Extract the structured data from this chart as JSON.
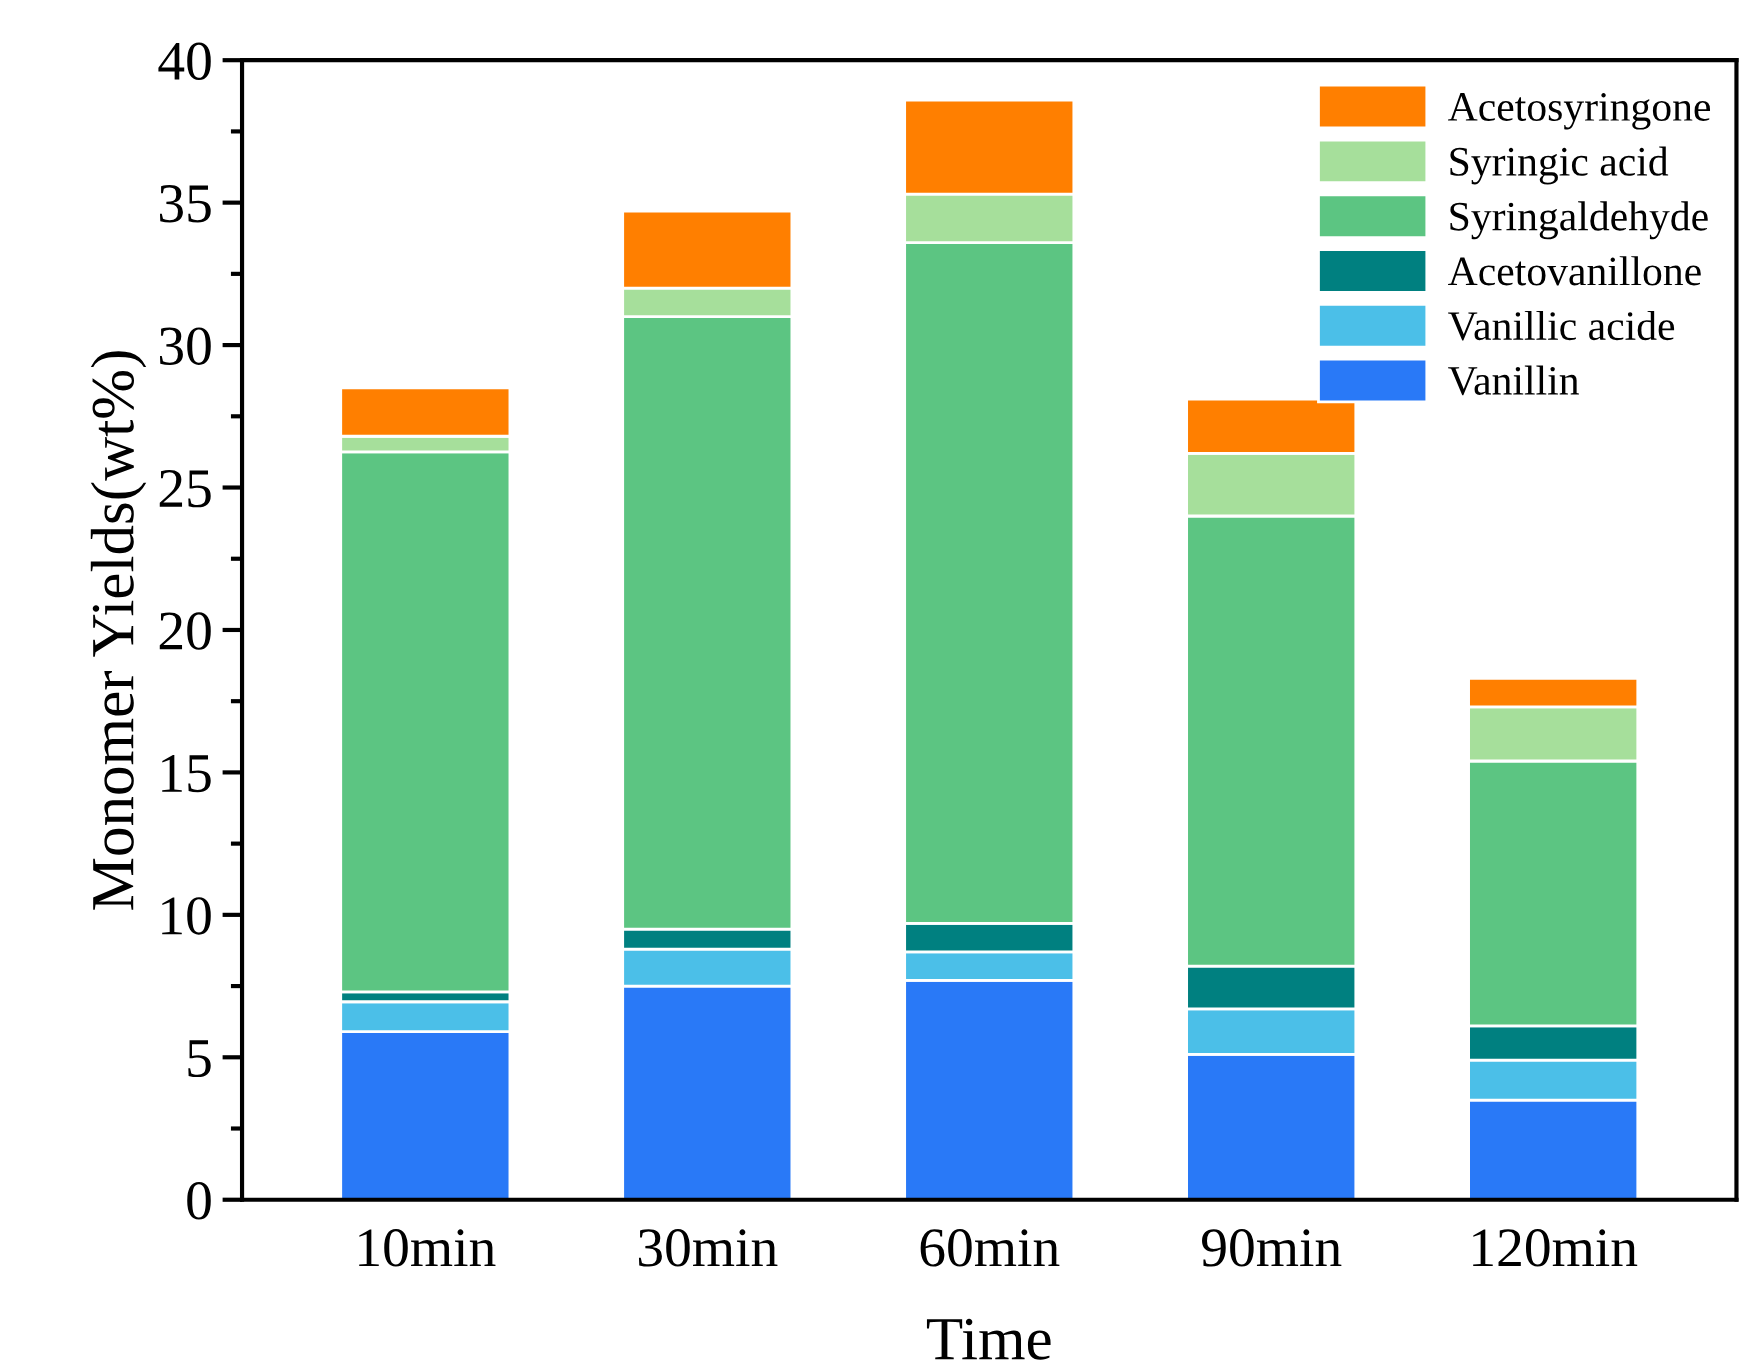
{
  "chart_data": {
    "type": "bar",
    "stacked": true,
    "xlabel": "Time",
    "ylabel": "Monomer Yields(wt%)",
    "categories": [
      "10min",
      "30min",
      "60min",
      "90min",
      "120min"
    ],
    "series": [
      {
        "name": "Vanillin",
        "color": "#2979f7",
        "values": [
          5.9,
          7.5,
          7.7,
          5.1,
          3.5
        ]
      },
      {
        "name": "Vanillic acide",
        "color": "#4bbfe8",
        "values": [
          1.05,
          1.3,
          1.0,
          1.6,
          1.4
        ]
      },
      {
        "name": "Acetovanillone",
        "color": "#008080",
        "values": [
          0.35,
          0.7,
          1.0,
          1.5,
          1.2
        ]
      },
      {
        "name": "Syringaldehyde",
        "color": "#5cc582",
        "values": [
          18.95,
          21.5,
          23.9,
          15.8,
          9.3
        ]
      },
      {
        "name": "Syringic acid",
        "color": "#a6df9b",
        "values": [
          0.55,
          1.0,
          1.7,
          2.2,
          1.9
        ]
      },
      {
        "name": "Acetosyringone",
        "color": "#ff7f00",
        "values": [
          1.7,
          2.7,
          3.3,
          1.9,
          1.0
        ]
      }
    ],
    "ylim": [
      0,
      40
    ],
    "yticks": [
      0,
      {
        "value": 2.5,
        "label": null
      },
      5,
      {
        "value": 7.5,
        "label": null
      },
      10,
      {
        "value": 12.5,
        "label": null
      },
      15,
      {
        "value": 17.5,
        "label": null
      },
      20,
      {
        "value": 22.5,
        "label": null
      },
      25,
      {
        "value": 27.5,
        "label": null
      },
      30,
      {
        "value": 32.5,
        "label": null
      },
      35,
      {
        "value": 37.5,
        "label": null
      },
      40
    ],
    "grid": false,
    "legend": "top right"
  }
}
